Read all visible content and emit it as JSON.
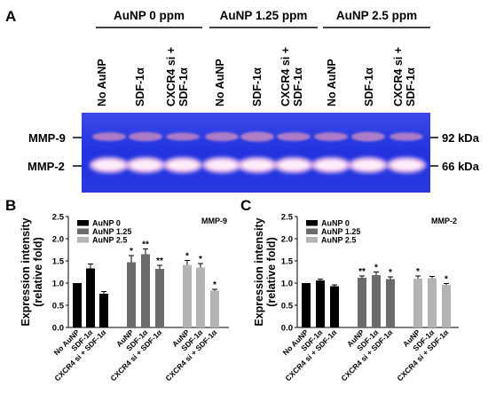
{
  "panel_a": {
    "label": "A",
    "groups": [
      "AuNP 0 ppm",
      "AuNP 1.25 ppm",
      "AuNP 2.5 ppm"
    ],
    "lanes": [
      "No AuNP",
      "SDF-1α",
      "CXCR4 si + SDF-1α",
      "No AuNP",
      "SDF-1α",
      "CXCR4 si + SDF-1α",
      "No AuNP",
      "SDF-1α",
      "CXCR4 si + SDF-1α"
    ],
    "bands_left": [
      "MMP-9",
      "MMP-2"
    ],
    "bands_right": [
      "92 kDa",
      "66 kDa"
    ],
    "colors": {
      "gel_blue": "#2233e0",
      "band_mmp9": "#b882c6",
      "band_mmp2": "#f4c8ec"
    }
  },
  "chart_data": [
    {
      "type": "bar",
      "panel": "B",
      "title": "MMP-9",
      "ylabel": "Expression intensity\n(relative fold)",
      "ylim": [
        0,
        2.5
      ],
      "yticks": [
        0.0,
        0.5,
        1.0,
        1.5,
        2.0,
        2.5
      ],
      "grid": false,
      "legend_position": "top-left",
      "legend": [
        "AuNP 0",
        "AuNP 1.25",
        "AuNP 2.5"
      ],
      "series_colors": [
        "#000000",
        "#6b6b6b",
        "#b4b4b4"
      ],
      "categories": [
        "No AuNP",
        "SDF-1α",
        "CXCR4 si + SDF-1α",
        "AuNP",
        "SDF-1α",
        "CXCR4 si + SDF-1α",
        "AuNP",
        "SDF-1α",
        "CXCR4 si + SDF-1α"
      ],
      "values": [
        1.0,
        1.33,
        0.76,
        1.47,
        1.65,
        1.32,
        1.41,
        1.35,
        0.83
      ],
      "errors": [
        0.0,
        0.1,
        0.05,
        0.15,
        0.12,
        0.08,
        0.1,
        0.09,
        0.03
      ],
      "groups": [
        0,
        0,
        0,
        1,
        1,
        1,
        2,
        2,
        2
      ],
      "significance": [
        "",
        "",
        "",
        "*",
        "**",
        "**",
        "*",
        "*",
        "*"
      ]
    },
    {
      "type": "bar",
      "panel": "C",
      "title": "MMP-2",
      "ylabel": "Expression intensity\n(relative fold)",
      "ylim": [
        0,
        2.5
      ],
      "yticks": [
        0.0,
        0.5,
        1.0,
        1.5,
        2.0,
        2.5
      ],
      "grid": false,
      "legend_position": "top-left",
      "legend": [
        "AuNP 0",
        "AuNP 1.25",
        "AuNP 2.5"
      ],
      "series_colors": [
        "#000000",
        "#6b6b6b",
        "#b4b4b4"
      ],
      "categories": [
        "No AuNP",
        "SDF-1α",
        "CXCR4 si + SDF-1α",
        "AuNP",
        "SDF-1α",
        "CXCR4 si + SDF-1α",
        "AuNP",
        "SDF-1α",
        "CXCR4 si + SDF-1α"
      ],
      "values": [
        1.0,
        1.06,
        0.93,
        1.12,
        1.18,
        1.09,
        1.1,
        1.11,
        0.96
      ],
      "errors": [
        0.0,
        0.03,
        0.03,
        0.04,
        0.07,
        0.05,
        0.06,
        0.04,
        0.03
      ],
      "groups": [
        0,
        0,
        0,
        1,
        1,
        1,
        2,
        2,
        2
      ],
      "significance": [
        "",
        "",
        "",
        "**",
        "*",
        "*",
        "*",
        "",
        "*"
      ]
    }
  ]
}
